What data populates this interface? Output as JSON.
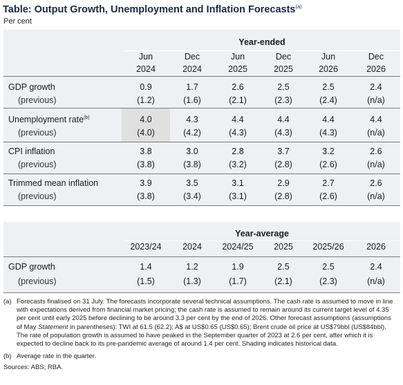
{
  "title": "Table: Output Growth, Unemployment and Inflation Forecasts",
  "title_note": "(a)",
  "units": "Per cent",
  "year_ended": {
    "heading": "Year-ended",
    "columns": [
      {
        "line1": "Jun",
        "line2": "2024"
      },
      {
        "line1": "Dec",
        "line2": "2024"
      },
      {
        "line1": "Jun",
        "line2": "2025"
      },
      {
        "line1": "Dec",
        "line2": "2025"
      },
      {
        "line1": "Jun",
        "line2": "2026"
      },
      {
        "line1": "Dec",
        "line2": "2026"
      }
    ],
    "rows": [
      {
        "label": "GDP growth",
        "note": "",
        "prev_label": "(previous)",
        "values": [
          "0.9",
          "1.7",
          "2.6",
          "2.5",
          "2.5",
          "2.4"
        ],
        "previous": [
          "(1.2)",
          "(1.6)",
          "(2.1)",
          "(2.3)",
          "(2.4)",
          "(n/a)"
        ]
      },
      {
        "label": "Unemployment rate",
        "note": "(b)",
        "prev_label": "(previous)",
        "values": [
          "4.0",
          "4.3",
          "4.4",
          "4.4",
          "4.4",
          "4.4"
        ],
        "previous": [
          "(4.0)",
          "(4.2)",
          "(4.3)",
          "(4.3)",
          "(4.3)",
          "(n/a)"
        ]
      },
      {
        "label": "CPI inflation",
        "note": "",
        "prev_label": "(previous)",
        "values": [
          "3.8",
          "3.0",
          "2.8",
          "3.7",
          "3.2",
          "2.6"
        ],
        "previous": [
          "(3.8)",
          "(3.8)",
          "(3.2)",
          "(2.8)",
          "(2.6)",
          "(n/a)"
        ]
      },
      {
        "label": "Trimmed mean inflation",
        "note": "",
        "prev_label": "(previous)",
        "values": [
          "3.9",
          "3.5",
          "3.1",
          "2.9",
          "2.7",
          "2.6"
        ],
        "previous": [
          "(3.8)",
          "(3.4)",
          "(3.1)",
          "(2.8)",
          "(2.6)",
          "(n/a)"
        ]
      }
    ]
  },
  "year_average": {
    "heading": "Year-average",
    "columns": [
      "2023/24",
      "2024",
      "2024/25",
      "2025",
      "2025/26",
      "2026"
    ],
    "rows": [
      {
        "label": "GDP growth",
        "prev_label": "(previous)",
        "values": [
          "1.4",
          "1.2",
          "1.9",
          "2.5",
          "2.5",
          "2.4"
        ],
        "previous": [
          "(1.5)",
          "(1.3)",
          "(1.7)",
          "(2.1)",
          "(2.3)",
          "(n/a)"
        ]
      }
    ]
  },
  "notes": [
    {
      "mark": "(a)",
      "text_before": "Forecasts finalised on 31 July. The forecasts incorporate several technical assumptions. The cash rate is assumed to move in line with expectations derived from financial market pricing; the cash rate is assumed to remain around its current target level of 4.35 per cent until early 2025 before declining to be around 3.3 per cent by the end of 2026. Other forecast assumptions (assumptions of May ",
      "text_italic": "Statement",
      "text_after": " in parentheses): TWI at 61.5 (62.2); A$ at US$0.65 (US$0.65); Brent crude oil price at US$79bbl (US$84bbl). The rate of population growth is assumed to have peaked in the September quarter of 2023 at 2.6 per cent, after which it is expected to decline back to its pre-pandemic average of around 1.4 per cent. Shading indicates historical data."
    },
    {
      "mark": "(b)",
      "text_before": "Average rate in the quarter.",
      "text_italic": "",
      "text_after": ""
    }
  ],
  "sources": "Sources: ABS; RBA."
}
